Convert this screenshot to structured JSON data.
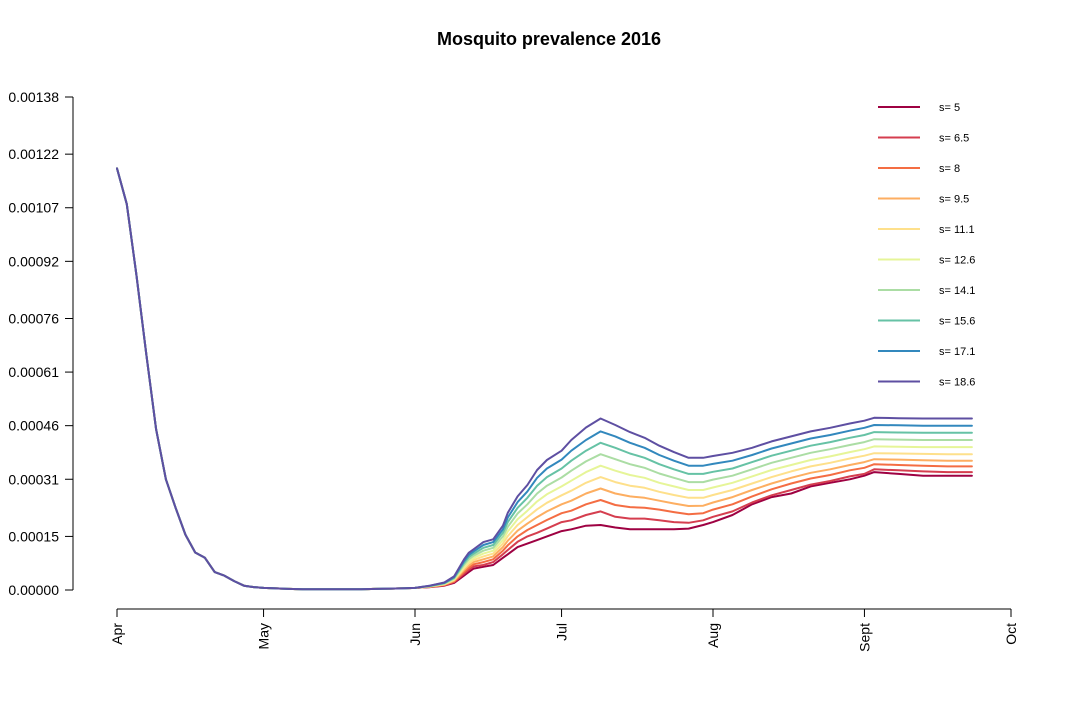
{
  "chart_data": {
    "type": "line",
    "title": "Mosquito prevalence 2016",
    "xlabel": "",
    "ylabel": "",
    "x_tick_labels": [
      "Apr",
      "May",
      "Jun",
      "Jul",
      "Aug",
      "Sept",
      "Oct"
    ],
    "x_tick_values": [
      0,
      30,
      61,
      91,
      122,
      153,
      183
    ],
    "xlim": [
      0,
      183
    ],
    "y_tick_labels": [
      "0.00000",
      "0.00015",
      "0.00031",
      "0.00046",
      "0.00061",
      "0.00076",
      "0.00092",
      "0.00107",
      "0.00122",
      "0.00138"
    ],
    "y_tick_values": [
      0,
      0.00015,
      0.00031,
      0.00046,
      0.00061,
      0.00076,
      0.00092,
      0.00107,
      0.00122,
      0.00138
    ],
    "ylim": [
      0,
      0.00138
    ],
    "grid": false,
    "legend_position": "top-right",
    "common_early": {
      "x": [
        0,
        2,
        4,
        6,
        8,
        10,
        12,
        14,
        16,
        18,
        20,
        22,
        24,
        26,
        28,
        30,
        32,
        35,
        38,
        41,
        44,
        47,
        50,
        53,
        56,
        59,
        61
      ],
      "y": [
        0.00118,
        0.00108,
        0.00088,
        0.00066,
        0.00045,
        0.00031,
        0.00023,
        0.000155,
        0.000105,
        9e-05,
        5e-05,
        4e-05,
        2.5e-05,
        1.2e-05,
        8e-06,
        6e-06,
        5e-06,
        3e-06,
        2e-06,
        2e-06,
        2e-06,
        2e-06,
        2e-06,
        3e-06,
        4e-06,
        5e-06,
        6e-06
      ]
    },
    "x": [
      61,
      64,
      67,
      69,
      71,
      72,
      73,
      75,
      77,
      79,
      80,
      82,
      84,
      86,
      88,
      91,
      93,
      96,
      99,
      102,
      105,
      108,
      111,
      114,
      117,
      120,
      122,
      126,
      130,
      134,
      138,
      142,
      146,
      150,
      153,
      155,
      160,
      165,
      170,
      175
    ],
    "series": [
      {
        "name": "s= 5",
        "color": "#9e0142",
        "base_scale": 1.0,
        "values": [
          6e-06,
          8e-06,
          1.2e-05,
          2e-05,
          4e-05,
          5e-05,
          6e-05,
          6.5e-05,
          7e-05,
          9e-05,
          0.0001,
          0.00012,
          0.00013,
          0.00014,
          0.00015,
          0.000165,
          0.00017,
          0.00018,
          0.000182,
          0.000175,
          0.00017,
          0.00017,
          0.00017,
          0.00017,
          0.000172,
          0.000182,
          0.00019,
          0.00021,
          0.00024,
          0.00026,
          0.00027,
          0.00029,
          0.0003,
          0.00031,
          0.00032,
          0.00033,
          0.000325,
          0.00032,
          0.00032,
          0.00032
        ]
      },
      {
        "name": "s= 6.5",
        "color": "#d53e4f",
        "values": [
          6e-06,
          8e-06,
          1.3e-05,
          2.2e-05,
          4.5e-05,
          5.6e-05,
          6.6e-05,
          7e-05,
          7.8e-05,
          0.0001,
          0.000112,
          0.000135,
          0.00015,
          0.00016,
          0.000172,
          0.00019,
          0.000195,
          0.00021,
          0.00022,
          0.000205,
          0.0002,
          0.0002,
          0.000195,
          0.00019,
          0.000188,
          0.000195,
          0.000205,
          0.00022,
          0.000245,
          0.000265,
          0.00028,
          0.000295,
          0.000305,
          0.000318,
          0.000325,
          0.000338,
          0.000335,
          0.000332,
          0.00033,
          0.00033
        ]
      },
      {
        "name": "s= 8",
        "color": "#f46d43",
        "values": [
          6e-06,
          9e-06,
          1.4e-05,
          2.4e-05,
          5e-05,
          6.2e-05,
          7.2e-05,
          7.8e-05,
          8.6e-05,
          0.00011,
          0.000125,
          0.00015,
          0.000168,
          0.000182,
          0.000196,
          0.000215,
          0.000222,
          0.00024,
          0.000252,
          0.000238,
          0.000232,
          0.00023,
          0.000225,
          0.000218,
          0.000212,
          0.000215,
          0.000225,
          0.00024,
          0.000262,
          0.000282,
          0.000298,
          0.000312,
          0.000322,
          0.000335,
          0.000342,
          0.000352,
          0.00035,
          0.000348,
          0.000346,
          0.000346
        ]
      },
      {
        "name": "s= 9.5",
        "color": "#fdae61",
        "values": [
          6e-06,
          9e-06,
          1.5e-05,
          2.6e-05,
          5.5e-05,
          6.8e-05,
          7.8e-05,
          8.6e-05,
          9.4e-05,
          0.00012,
          0.000138,
          0.000166,
          0.000186,
          0.000204,
          0.00022,
          0.00024,
          0.00025,
          0.00027,
          0.000284,
          0.00027,
          0.000262,
          0.000258,
          0.00025,
          0.000242,
          0.000235,
          0.000236,
          0.000245,
          0.00026,
          0.00028,
          0.000298,
          0.000314,
          0.000328,
          0.000338,
          0.00035,
          0.000358,
          0.000366,
          0.000365,
          0.000363,
          0.000362,
          0.000362
        ]
      },
      {
        "name": "s= 11.1",
        "color": "#fee08b",
        "values": [
          6e-06,
          1e-05,
          1.6e-05,
          2.8e-05,
          6e-05,
          7.4e-05,
          8.4e-05,
          9.4e-05,
          0.000102,
          0.00013,
          0.000151,
          0.000182,
          0.000204,
          0.000226,
          0.000244,
          0.000265,
          0.000278,
          0.0003,
          0.000316,
          0.000302,
          0.000292,
          0.000286,
          0.000275,
          0.000266,
          0.000258,
          0.000258,
          0.000266,
          0.00028,
          0.000298,
          0.000316,
          0.000332,
          0.000346,
          0.000356,
          0.000368,
          0.000376,
          0.000383,
          0.000382,
          0.000381,
          0.00038,
          0.00038
        ]
      },
      {
        "name": "s= 12.6",
        "color": "#e6f598",
        "values": [
          6e-06,
          1e-05,
          1.7e-05,
          3e-05,
          6.5e-05,
          8e-05,
          9e-05,
          0.000102,
          0.00011,
          0.00014,
          0.000164,
          0.000198,
          0.000222,
          0.000248,
          0.000268,
          0.00029,
          0.000306,
          0.00033,
          0.000348,
          0.000334,
          0.000322,
          0.000314,
          0.0003,
          0.00029,
          0.00028,
          0.00028,
          0.000287,
          0.0003,
          0.000318,
          0.000336,
          0.00035,
          0.000364,
          0.000374,
          0.000386,
          0.000394,
          0.000402,
          0.000401,
          0.0004,
          0.0004,
          0.0004
        ]
      },
      {
        "name": "s= 14.1",
        "color": "#abdda4",
        "values": [
          6e-06,
          1.1e-05,
          1.8e-05,
          3.2e-05,
          7e-05,
          8.6e-05,
          9.6e-05,
          0.00011,
          0.000118,
          0.00015,
          0.000177,
          0.000214,
          0.00024,
          0.00027,
          0.000292,
          0.000315,
          0.000334,
          0.00036,
          0.00038,
          0.000366,
          0.000352,
          0.000342,
          0.000326,
          0.000314,
          0.000302,
          0.000302,
          0.000309,
          0.00032,
          0.000338,
          0.000356,
          0.00037,
          0.000384,
          0.000394,
          0.000406,
          0.000414,
          0.000422,
          0.000421,
          0.00042,
          0.00042,
          0.00042
        ]
      },
      {
        "name": "s= 15.6",
        "color": "#66c2a5",
        "values": [
          6e-06,
          1.1e-05,
          1.9e-05,
          3.4e-05,
          7.5e-05,
          9.2e-05,
          0.000102,
          0.000118,
          0.000126,
          0.00016,
          0.00019,
          0.00023,
          0.000258,
          0.000292,
          0.000316,
          0.00034,
          0.000362,
          0.00039,
          0.000412,
          0.000398,
          0.000382,
          0.00037,
          0.000352,
          0.000338,
          0.000325,
          0.000325,
          0.000331,
          0.00034,
          0.000358,
          0.000376,
          0.00039,
          0.000404,
          0.000414,
          0.000426,
          0.000434,
          0.000442,
          0.000441,
          0.00044,
          0.00044,
          0.00044
        ]
      },
      {
        "name": "s= 17.1",
        "color": "#3288bd",
        "values": [
          6e-06,
          1.2e-05,
          2e-05,
          3.6e-05,
          8e-05,
          9.8e-05,
          0.000108,
          0.000126,
          0.000134,
          0.00017,
          0.000203,
          0.000246,
          0.000276,
          0.000314,
          0.00034,
          0.000365,
          0.00039,
          0.00042,
          0.000444,
          0.00043,
          0.000412,
          0.000398,
          0.000378,
          0.000362,
          0.000348,
          0.000348,
          0.000353,
          0.000362,
          0.000378,
          0.000396,
          0.00041,
          0.000424,
          0.000434,
          0.000446,
          0.000454,
          0.000462,
          0.000461,
          0.00046,
          0.00046,
          0.00046
        ]
      },
      {
        "name": "s= 18.6",
        "color": "#5e4fa2",
        "values": [
          6e-06,
          1.2e-05,
          2.1e-05,
          3.8e-05,
          8.5e-05,
          0.000104,
          0.000114,
          0.000134,
          0.000142,
          0.00018,
          0.000216,
          0.000262,
          0.000294,
          0.000336,
          0.000364,
          0.00039,
          0.00042,
          0.000455,
          0.00048,
          0.000462,
          0.000442,
          0.000426,
          0.000404,
          0.000386,
          0.00037,
          0.00037,
          0.000375,
          0.000384,
          0.000398,
          0.000416,
          0.00043,
          0.000444,
          0.000454,
          0.000466,
          0.000474,
          0.000482,
          0.000481,
          0.00048,
          0.00048,
          0.00048
        ]
      }
    ]
  }
}
